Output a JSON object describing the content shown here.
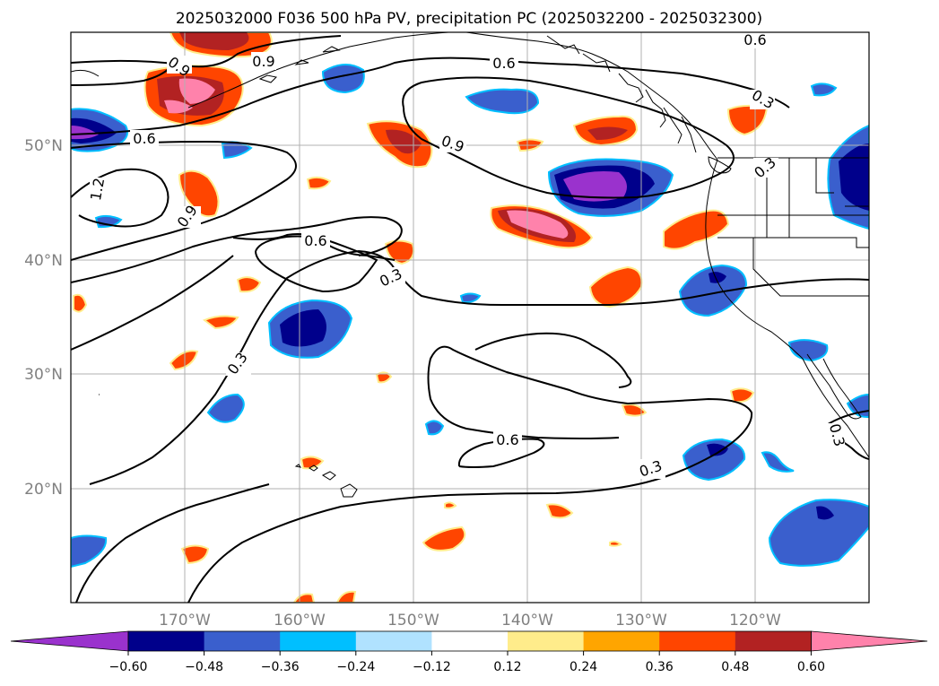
{
  "title": "2025032000 F036 500 hPa PV, precipitation PC (2025032200 - 2025032300)",
  "lat_labels": [
    "50°N",
    "40°N",
    "30°N",
    "20°N"
  ],
  "lon_labels": [
    "170°W",
    "160°W",
    "150°W",
    "140°W",
    "130°W",
    "120°W"
  ],
  "colorbar": {
    "ticks": [
      "−0.60",
      "−0.48",
      "−0.36",
      "−0.24",
      "−0.12",
      "0.12",
      "0.24",
      "0.36",
      "0.48",
      "0.60"
    ],
    "colors": [
      "#9a32cd",
      "#00008b",
      "#3a5fcd",
      "#00bfff",
      "#b0e2ff",
      "#ffffff",
      "#ffec8b",
      "#ffa500",
      "#ff4500",
      "#b22222",
      "#ff82ab"
    ]
  },
  "contour_labels": [
    "0.9",
    "0.9",
    "0.6",
    "0.6",
    "0.9",
    "1.2",
    "0.9",
    "0.6",
    "0.3",
    "0.3",
    "0.3",
    "0.3",
    "0.6",
    "0.3",
    "0.6",
    "0.3"
  ]
}
